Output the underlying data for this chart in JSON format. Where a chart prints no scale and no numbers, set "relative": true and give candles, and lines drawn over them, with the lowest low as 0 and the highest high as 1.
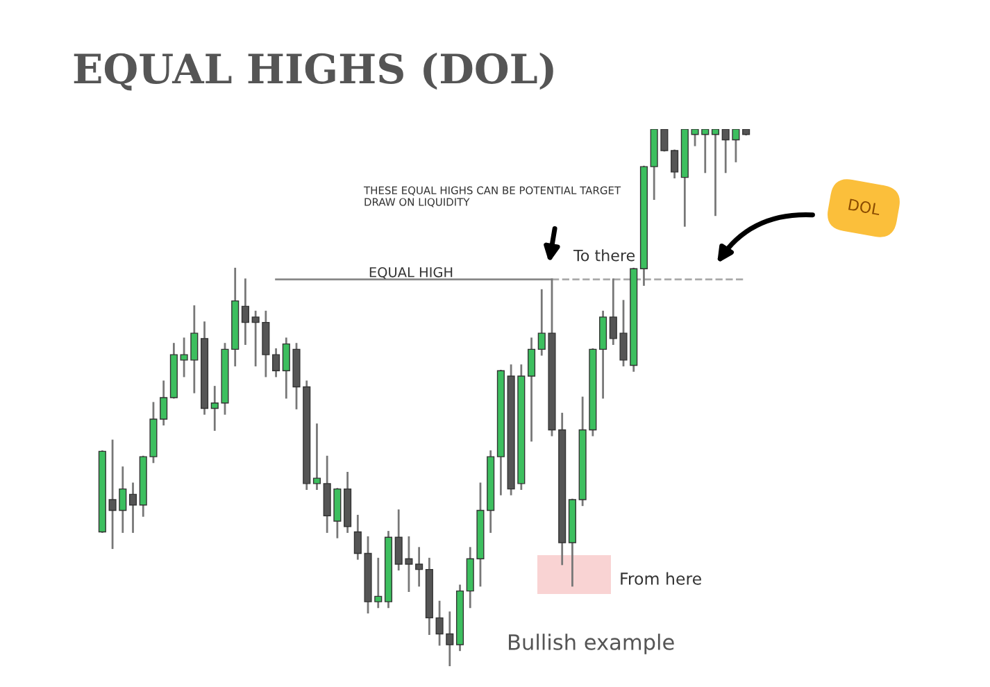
{
  "chart_data": {
    "type": "candlestick",
    "title": "EQUAL HIGHS (DOL)",
    "relative": true,
    "categories": [
      null,
      null,
      null,
      null,
      null,
      null,
      null,
      null,
      null,
      null,
      null,
      null,
      null,
      null,
      null,
      null,
      null,
      null,
      null,
      null,
      null,
      null,
      null,
      null,
      null,
      null,
      null,
      null,
      null,
      null,
      null,
      null,
      null,
      null,
      null,
      null,
      null,
      null,
      null,
      null,
      null,
      null,
      null,
      null,
      null,
      null,
      null,
      null,
      null,
      null,
      null,
      null,
      null,
      null,
      null,
      null,
      null,
      null,
      null,
      null,
      null,
      null,
      null,
      null
    ],
    "colors": [
      "#3dbf5f",
      "#555555",
      "#3dbf5f",
      "#555555",
      "#3dbf5f",
      "#3dbf5f",
      "#3dbf5f",
      "#3dbf5f",
      "#3dbf5f",
      "#3dbf5f",
      "#555555",
      "#3dbf5f",
      "#3dbf5f",
      "#3dbf5f",
      "#555555",
      "#555555",
      "#555555",
      "#555555",
      "#3dbf5f",
      "#555555",
      "#555555",
      "#3dbf5f",
      "#555555",
      "#3dbf5f",
      "#555555",
      "#555555",
      "#555555",
      "#3dbf5f",
      "#3dbf5f",
      "#555555",
      "#555555",
      "#555555",
      "#555555",
      "#555555",
      "#555555",
      "#3dbf5f",
      "#3dbf5f",
      "#3dbf5f",
      "#3dbf5f",
      "#3dbf5f",
      "#555555",
      "#3dbf5f",
      "#3dbf5f",
      "#3dbf5f",
      "#555555",
      "#555555",
      "#3dbf5f",
      "#3dbf5f",
      "#3dbf5f",
      "#3dbf5f",
      "#555555",
      "#555555",
      "#3dbf5f",
      "#3dbf5f",
      "#3dbf5f",
      "#555555",
      "#555555",
      "#3dbf5f",
      "#3dbf5f",
      "#3dbf5f",
      "#3dbf5f",
      "#555555",
      "#3dbf5f",
      "#555555"
    ],
    "ohlc": [
      [
        0.25,
        0.4,
        0.25,
        0.4
      ],
      [
        0.31,
        0.42,
        0.22,
        0.29
      ],
      [
        0.29,
        0.37,
        0.25,
        0.33
      ],
      [
        0.32,
        0.34,
        0.25,
        0.3
      ],
      [
        0.3,
        0.39,
        0.28,
        0.39
      ],
      [
        0.39,
        0.49,
        0.38,
        0.46
      ],
      [
        0.46,
        0.53,
        0.45,
        0.5
      ],
      [
        0.5,
        0.6,
        0.5,
        0.58
      ],
      [
        0.57,
        0.61,
        0.54,
        0.58
      ],
      [
        0.57,
        0.67,
        0.51,
        0.62
      ],
      [
        0.61,
        0.64,
        0.47,
        0.48
      ],
      [
        0.48,
        0.52,
        0.44,
        0.49
      ],
      [
        0.49,
        0.6,
        0.47,
        0.59
      ],
      [
        0.59,
        0.74,
        0.56,
        0.68
      ],
      [
        0.67,
        0.72,
        0.6,
        0.64
      ],
      [
        0.65,
        0.66,
        0.56,
        0.64
      ],
      [
        0.64,
        0.66,
        0.54,
        0.58
      ],
      [
        0.58,
        0.59,
        0.54,
        0.55
      ],
      [
        0.55,
        0.61,
        0.5,
        0.6
      ],
      [
        0.59,
        0.6,
        0.48,
        0.52
      ],
      [
        0.52,
        0.53,
        0.33,
        0.34
      ],
      [
        0.34,
        0.45,
        0.33,
        0.35
      ],
      [
        0.34,
        0.39,
        0.25,
        0.28
      ],
      [
        0.27,
        0.33,
        0.24,
        0.33
      ],
      [
        0.33,
        0.36,
        0.25,
        0.26
      ],
      [
        0.25,
        0.28,
        0.2,
        0.21
      ],
      [
        0.21,
        0.24,
        0.1,
        0.12
      ],
      [
        0.12,
        0.2,
        0.11,
        0.13
      ],
      [
        0.12,
        0.25,
        0.11,
        0.24
      ],
      [
        0.24,
        0.29,
        0.18,
        0.19
      ],
      [
        0.2,
        0.24,
        0.14,
        0.19
      ],
      [
        0.19,
        0.22,
        0.15,
        0.18
      ],
      [
        0.18,
        0.2,
        0.06,
        0.09
      ],
      [
        0.09,
        0.12,
        0.04,
        0.06
      ],
      [
        0.06,
        0.1,
        0,
        0.04
      ],
      [
        0.04,
        0.15,
        0.03,
        0.14
      ],
      [
        0.14,
        0.22,
        0.11,
        0.2
      ],
      [
        0.2,
        0.34,
        0.15,
        0.29
      ],
      [
        0.29,
        0.4,
        0.25,
        0.39
      ],
      [
        0.39,
        0.55,
        0.32,
        0.55
      ],
      [
        0.54,
        0.56,
        0.32,
        0.33
      ],
      [
        0.34,
        0.56,
        0.33,
        0.54
      ],
      [
        0.54,
        0.61,
        0.42,
        0.59
      ],
      [
        0.59,
        0.7,
        0.58,
        0.62
      ],
      [
        0.62,
        0.72,
        0.43,
        0.44
      ],
      [
        0.44,
        0.47,
        0.19,
        0.23
      ],
      [
        0.23,
        0.31,
        0.15,
        0.31
      ],
      [
        0.31,
        0.5,
        0.3,
        0.44
      ],
      [
        0.44,
        0.59,
        0.43,
        0.59
      ],
      [
        0.59,
        0.66,
        0.5,
        0.65
      ],
      [
        0.65,
        0.72,
        0.6,
        0.61
      ],
      [
        0.62,
        0.68,
        0.56,
        0.57
      ],
      [
        0.56,
        0.74,
        0.55,
        0.74
      ],
      [
        0.74,
        0.93,
        0.71,
        0.93
      ],
      [
        0.93,
        1,
        0.87,
        1
      ],
      [
        1,
        1,
        0.96,
        0.96
      ],
      [
        0.96,
        0.96,
        0.91,
        0.92
      ],
      [
        0.91,
        1,
        0.82,
        1
      ],
      [
        0.99,
        1,
        0.97,
        1
      ],
      [
        0.99,
        1,
        0.92,
        1
      ],
      [
        0.99,
        1,
        0.84,
        1
      ],
      [
        1,
        1,
        0.92,
        0.98
      ],
      [
        0.98,
        1,
        0.94,
        1
      ],
      [
        1,
        1,
        0.99,
        0.99
      ]
    ],
    "series": [
      {
        "type": "line",
        "color": "#888888",
        "line_style": "solid",
        "values": [
          null,
          null,
          null,
          null,
          null,
          null,
          null,
          null,
          null,
          null,
          null,
          null,
          null,
          null,
          null,
          null,
          null,
          0.72,
          0.72,
          0.72,
          0.72,
          0.72,
          0.72,
          0.72,
          0.72,
          0.72,
          0.72,
          0.72,
          0.72,
          0.72,
          0.72,
          0.72,
          0.72,
          0.72,
          0.72,
          0.72,
          0.72,
          0.72,
          0.72,
          0.72,
          0.72,
          0.72,
          0.72,
          0.72,
          0.72,
          null,
          null,
          null,
          null,
          null,
          null,
          null,
          null,
          null,
          null,
          null,
          null,
          null,
          null,
          null,
          null,
          null,
          null,
          null
        ]
      },
      {
        "type": "line",
        "color": "#aaaaaa",
        "line_style": "dashed",
        "values": [
          null,
          null,
          null,
          null,
          null,
          null,
          null,
          null,
          null,
          null,
          null,
          null,
          null,
          null,
          null,
          null,
          null,
          null,
          null,
          null,
          null,
          null,
          null,
          null,
          null,
          null,
          null,
          null,
          null,
          null,
          null,
          null,
          null,
          null,
          null,
          null,
          null,
          null,
          null,
          null,
          null,
          null,
          null,
          null,
          0.72,
          0.72,
          0.72,
          0.72,
          0.72,
          0.72,
          0.72,
          0.72,
          0.72,
          0.72,
          0.72,
          0.72,
          0.72,
          0.72,
          0.72,
          0.72,
          0.72,
          0.72,
          0.72,
          0.72
        ]
      }
    ],
    "annotations": [
      "EQUAL HIGH",
      "THESE EQUAL HIGHS CAN BE POTENTIAL TARGET\nDRAW ON LIQUIDITY",
      "To there",
      "From here",
      "Bullish example",
      "DOL"
    ]
  }
}
